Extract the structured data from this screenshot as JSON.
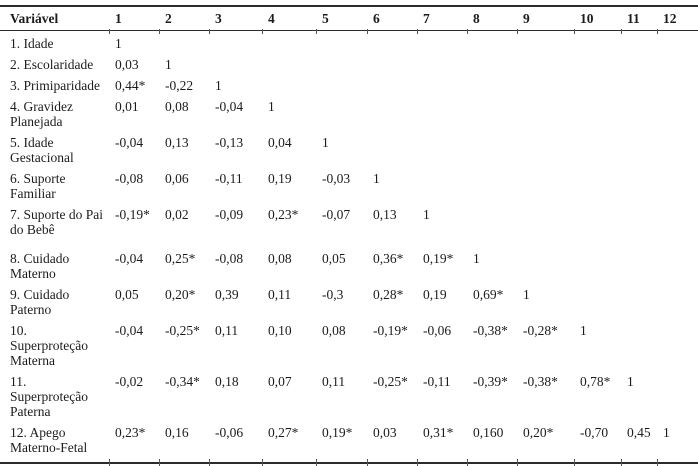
{
  "colors": {
    "text": "#1c1c1c",
    "rule": "#2b2b2b",
    "background": "#ffffff"
  },
  "table": {
    "header": {
      "variable_label": "Variável",
      "columns": [
        "1",
        "2",
        "3",
        "4",
        "5",
        "6",
        "7",
        "8",
        "9",
        "10",
        "11",
        "12"
      ]
    },
    "rows": [
      {
        "label": "1. Idade",
        "values": [
          "1",
          "",
          "",
          "",
          "",
          "",
          "",
          "",
          "",
          "",
          "",
          ""
        ]
      },
      {
        "label": "2. Escolaridade",
        "values": [
          "0,03",
          "1",
          "",
          "",
          "",
          "",
          "",
          "",
          "",
          "",
          "",
          ""
        ]
      },
      {
        "label": "3. Primiparidade",
        "values": [
          "0,44*",
          "-0,22",
          "1",
          "",
          "",
          "",
          "",
          "",
          "",
          "",
          "",
          ""
        ]
      },
      {
        "label": "4. Gravidez\nPlanejada",
        "values": [
          "0,01",
          "0,08",
          "-0,04",
          "1",
          "",
          "",
          "",
          "",
          "",
          "",
          "",
          ""
        ]
      },
      {
        "label": "5. Idade\nGestacional",
        "values": [
          "-0,04",
          "0,13",
          "-0,13",
          "0,04",
          "1",
          "",
          "",
          "",
          "",
          "",
          "",
          ""
        ]
      },
      {
        "label": "6. Suporte\nFamiliar",
        "values": [
          "-0,08",
          "0,06",
          "-0,11",
          "0,19",
          "-0,03",
          "1",
          "",
          "",
          "",
          "",
          "",
          ""
        ]
      },
      {
        "label": "7. Suporte do Pai\ndo Bebê",
        "values": [
          "-0,19*",
          "0,02",
          "-0,09",
          "0,23*",
          "-0,07",
          "0,13",
          "1",
          "",
          "",
          "",
          "",
          ""
        ]
      },
      {
        "label": "8. Cuidado\nMaterno",
        "values": [
          "-0,04",
          "0,25*",
          "-0,08",
          "0,08",
          "0,05",
          "0,36*",
          "0,19*",
          "1",
          "",
          "",
          "",
          ""
        ]
      },
      {
        "label": "9. Cuidado\nPaterno",
        "values": [
          "0,05",
          "0,20*",
          "0,39",
          "0,11",
          "-0,3",
          "0,28*",
          "0,19",
          "0,69*",
          "1",
          "",
          "",
          ""
        ]
      },
      {
        "label": "10.\nSuperproteção\nMaterna",
        "values": [
          "-0,04",
          "-0,25*",
          "0,11",
          "0,10",
          "0,08",
          "-0,19*",
          "-0,06",
          "-0,38*",
          "-0,28*",
          "1",
          "",
          ""
        ]
      },
      {
        "label": "11.\nSuperproteção\nPaterna",
        "values": [
          "-0,02",
          "-0,34*",
          "0,18",
          "0,07",
          "0,11",
          "-0,25*",
          "-0,11",
          "-0,39*",
          "-0,38*",
          "0,78*",
          "1",
          ""
        ]
      },
      {
        "label": "12. Apego\nMaterno-Fetal",
        "values": [
          "0,23*",
          "0,16",
          "-0,06",
          "0,27*",
          "0,19*",
          "0,03",
          "0,31*",
          "0,160",
          "0,20*",
          "-0,70",
          "0,45",
          "1"
        ]
      }
    ]
  }
}
